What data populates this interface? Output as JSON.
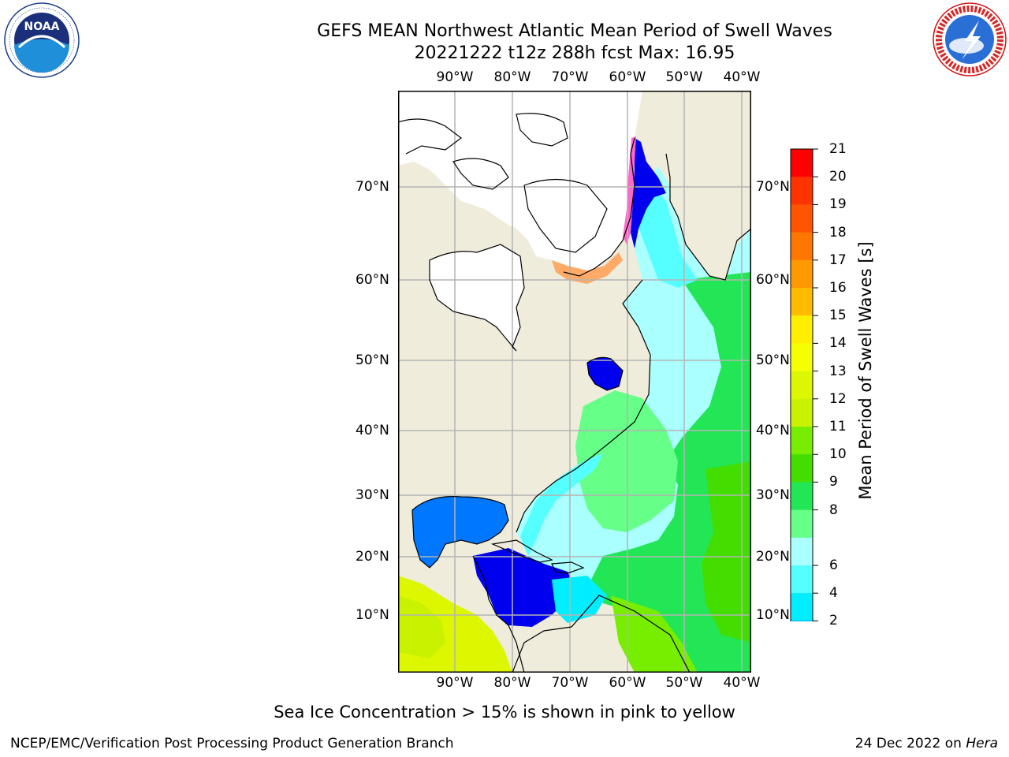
{
  "header": {
    "title": "GEFS MEAN Northwest Atlantic Mean Period of Swell Waves",
    "subtitle": "20221222 t12z 288h fcst   Max: 16.95"
  },
  "logos": {
    "left": {
      "icon": "noaa-logo-icon",
      "text": "NOAA",
      "ring_text": "NATIONAL OCEANIC AND ATMOSPHERIC ADMINISTRATION · U.S. DEPARTMENT OF COMMERCE"
    },
    "right": {
      "icon": "nws-logo-icon",
      "ring_text": "NATIONAL WEATHER SERVICE"
    }
  },
  "map": {
    "lon_labels": [
      "90°W",
      "80°W",
      "70°W",
      "60°W",
      "50°W",
      "40°W"
    ],
    "lat_labels": [
      "70°N",
      "60°N",
      "50°N",
      "40°N",
      "30°N",
      "20°N",
      "10°N"
    ],
    "colors": {
      "land": "#efecdc",
      "coast": "#000000",
      "grid": "#b4b4b4",
      "ice": "#ffffff"
    }
  },
  "colorbar": {
    "label": "Mean Period of Swell Waves [s]",
    "ticks": [
      "21",
      "20",
      "19",
      "18",
      "17",
      "16",
      "15",
      "14",
      "13",
      "12",
      "11",
      "10",
      "9",
      "8",
      "6",
      "4",
      "2"
    ],
    "colors_top_to_bottom": [
      "#ff0000",
      "#ff3300",
      "#ff5500",
      "#ff7700",
      "#ff9900",
      "#ffbb00",
      "#ffee00",
      "#f5ff00",
      "#ddf700",
      "#c8f200",
      "#77ee00",
      "#44dd00",
      "#22e655",
      "#66ff88",
      "#aaffff",
      "#55ffff",
      "#00eeff",
      "#0077ff"
    ],
    "extend_min_color": "#0000ee"
  },
  "caption": "Sea Ice Concentration > 15% is shown in pink to yellow",
  "footer": {
    "left": "NCEP/EMC/Verification Post Processing Product Generation Branch",
    "right_date": "24 Dec 2022 on ",
    "right_host": "Hera"
  }
}
